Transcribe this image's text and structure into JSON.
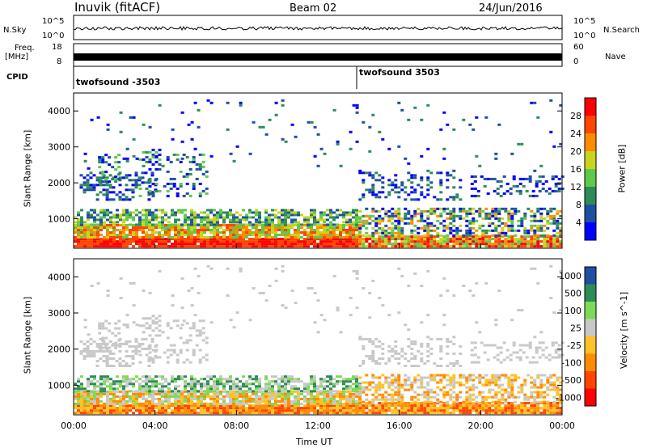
{
  "header": {
    "station": "Inuvik (fitACF)",
    "beam": "Beam 02",
    "date": "24/Jun/2016"
  },
  "panels": {
    "nsky_label": "N.Sky",
    "nsky_ticks": [
      "10^5",
      "10^0"
    ],
    "nsearch_label": "N.Search",
    "nsearch_ticks": [
      "10^5",
      "10^0"
    ],
    "freq_label": "Freq.",
    "freq_unit": "[MHz]",
    "freq_ticks": [
      "18",
      "8"
    ],
    "nave_label": "Nave",
    "nave_ticks": [
      "60",
      "0"
    ],
    "cpid_label": "CPID",
    "cpid_segments": [
      "twofsound -3503",
      "twofsound 3503"
    ]
  },
  "colors": {
    "power": [
      "#0000ff",
      "#1e4fa3",
      "#2e8b57",
      "#5ec94a",
      "#c9d41e",
      "#ff8c00",
      "#ff4500",
      "#ff0000"
    ],
    "velocity": [
      "#ff0000",
      "#ff4500",
      "#ff8c00",
      "#ffc125",
      "#c8c8c8",
      "#7ed957",
      "#2e8b57",
      "#1e4fa3"
    ]
  },
  "chart_data": [
    {
      "type": "heatmap",
      "name": "power",
      "ylabel": "Slant Range [km]",
      "yticks": [
        1000,
        2000,
        3000,
        4000
      ],
      "ylim": [
        180,
        4500
      ],
      "colorbar_label": "Power [dB]",
      "colorbar_ticks": [
        4,
        8,
        12,
        16,
        20,
        24,
        28
      ],
      "colorbar_range": [
        0,
        32
      ]
    },
    {
      "type": "heatmap",
      "name": "velocity",
      "xlabel": "Time UT",
      "xticks": [
        "00:00",
        "04:00",
        "08:00",
        "12:00",
        "16:00",
        "20:00",
        "00:00"
      ],
      "xlim": [
        0,
        24
      ],
      "ylabel": "Slant Range [km]",
      "yticks": [
        1000,
        2000,
        3000,
        4000
      ],
      "ylim": [
        180,
        4500
      ],
      "colorbar_label": "Velocity [m s^-1]",
      "colorbar_ticks": [
        "1000",
        "500",
        "100",
        "25",
        "-25",
        "-100",
        "-500",
        "-1000"
      ]
    }
  ]
}
